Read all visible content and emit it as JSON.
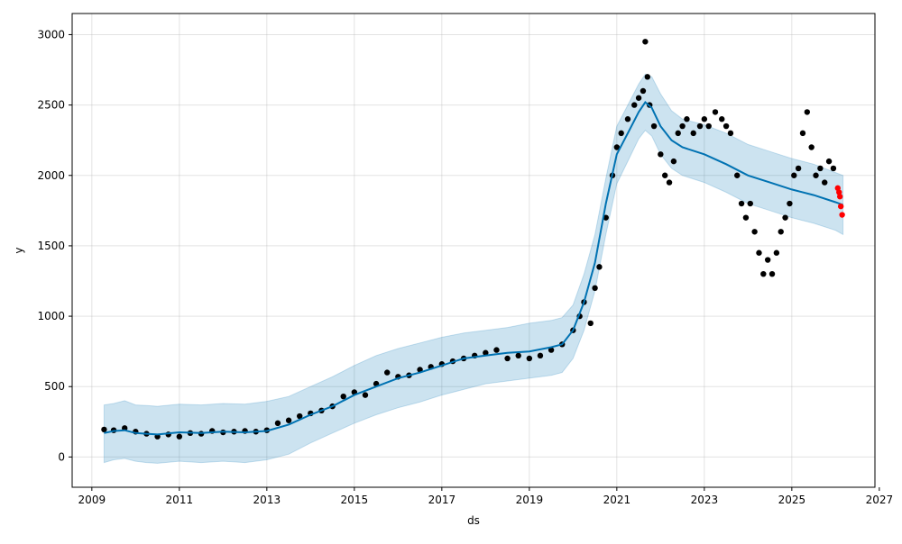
{
  "chart_data": {
    "type": "line",
    "title": "",
    "xlabel": "ds",
    "ylabel": "y",
    "xlim": [
      2008.55,
      2026.9
    ],
    "ylim": [
      -215,
      3150
    ],
    "x_ticks": [
      2009,
      2011,
      2013,
      2015,
      2017,
      2019,
      2021,
      2023,
      2025,
      2027
    ],
    "x_tick_labels": [
      "2009",
      "2011",
      "2013",
      "2015",
      "2017",
      "2019",
      "2021",
      "2023",
      "2025",
      "2027"
    ],
    "y_ticks": [
      0,
      500,
      1000,
      1500,
      2000,
      2500,
      3000
    ],
    "y_tick_labels": [
      "0",
      "500",
      "1000",
      "1500",
      "2000",
      "2500",
      "3000"
    ],
    "grid": true,
    "colors": {
      "observed": "#000000",
      "forecast_points": "#ff0000",
      "trend_line": "#0072b2",
      "interval_fill": "#0072b2"
    },
    "observed": {
      "x": [
        2009.28,
        2009.5,
        2009.75,
        2010.0,
        2010.25,
        2010.5,
        2010.75,
        2011.0,
        2011.25,
        2011.5,
        2011.75,
        2012.0,
        2012.25,
        2012.5,
        2012.75,
        2013.0,
        2013.25,
        2013.5,
        2013.75,
        2014.0,
        2014.25,
        2014.5,
        2014.75,
        2015.0,
        2015.25,
        2015.5,
        2015.75,
        2016.0,
        2016.25,
        2016.5,
        2016.75,
        2017.0,
        2017.25,
        2017.5,
        2017.75,
        2018.0,
        2018.25,
        2018.5,
        2018.75,
        2019.0,
        2019.25,
        2019.5,
        2019.75,
        2020.0,
        2020.15,
        2020.25,
        2020.4,
        2020.5,
        2020.6,
        2020.75,
        2020.9,
        2021.0,
        2021.1,
        2021.25,
        2021.4,
        2021.5,
        2021.6,
        2021.65,
        2021.7,
        2021.75,
        2021.85,
        2022.0,
        2022.1,
        2022.2,
        2022.3,
        2022.4,
        2022.5,
        2022.6,
        2022.75,
        2022.9,
        2023.0,
        2023.1,
        2023.25,
        2023.4,
        2023.5,
        2023.6,
        2023.75,
        2023.85,
        2023.95,
        2024.05,
        2024.15,
        2024.25,
        2024.35,
        2024.45,
        2024.55,
        2024.65,
        2024.75,
        2024.85,
        2024.95,
        2025.05,
        2025.15,
        2025.25,
        2025.35,
        2025.45,
        2025.55,
        2025.65,
        2025.75,
        2025.85,
        2025.95
      ],
      "y": [
        195,
        190,
        205,
        180,
        165,
        145,
        160,
        145,
        170,
        165,
        185,
        175,
        180,
        185,
        180,
        190,
        240,
        260,
        290,
        310,
        330,
        360,
        430,
        460,
        440,
        520,
        600,
        570,
        580,
        620,
        640,
        660,
        680,
        700,
        720,
        740,
        760,
        700,
        720,
        700,
        720,
        760,
        800,
        900,
        1000,
        1100,
        950,
        1200,
        1350,
        1700,
        2000,
        2200,
        2300,
        2400,
        2500,
        2550,
        2600,
        2950,
        2700,
        2500,
        2350,
        2150,
        2000,
        1950,
        2100,
        2300,
        2350,
        2400,
        2300,
        2350,
        2400,
        2350,
        2450,
        2400,
        2350,
        2300,
        2000,
        1800,
        1700,
        1800,
        1600,
        1450,
        1300,
        1400,
        1300,
        1450,
        1600,
        1700,
        1800,
        2000,
        2050,
        2300,
        2450,
        2200,
        2000,
        2050,
        1950,
        2100,
        2050
      ]
    },
    "forecast_points": {
      "x": [
        2026.05,
        2026.08,
        2026.1,
        2026.12,
        2026.15
      ],
      "y": [
        1910,
        1880,
        1850,
        1780,
        1720
      ]
    },
    "trend": {
      "x": [
        2009.28,
        2009.5,
        2009.75,
        2010.0,
        2010.25,
        2010.5,
        2011.0,
        2011.5,
        2012.0,
        2012.5,
        2013.0,
        2013.5,
        2014.0,
        2014.5,
        2015.0,
        2015.5,
        2016.0,
        2016.5,
        2017.0,
        2017.5,
        2018.0,
        2018.5,
        2019.0,
        2019.5,
        2019.75,
        2020.0,
        2020.25,
        2020.5,
        2020.75,
        2021.0,
        2021.25,
        2021.5,
        2021.65,
        2021.8,
        2022.0,
        2022.25,
        2022.5,
        2023.0,
        2023.5,
        2024.0,
        2024.5,
        2025.0,
        2025.5,
        2026.0,
        2026.17
      ],
      "y": [
        170,
        185,
        190,
        170,
        165,
        160,
        175,
        170,
        180,
        175,
        185,
        230,
        300,
        360,
        440,
        500,
        560,
        600,
        650,
        700,
        720,
        740,
        750,
        780,
        800,
        900,
        1100,
        1380,
        1800,
        2150,
        2300,
        2450,
        2520,
        2480,
        2350,
        2250,
        2200,
        2150,
        2080,
        2000,
        1950,
        1900,
        1860,
        1810,
        1790
      ]
    },
    "interval": {
      "x": [
        2009.28,
        2009.5,
        2009.75,
        2010.0,
        2010.25,
        2010.5,
        2011.0,
        2011.5,
        2012.0,
        2012.5,
        2013.0,
        2013.5,
        2014.0,
        2014.5,
        2015.0,
        2015.5,
        2016.0,
        2016.5,
        2017.0,
        2017.5,
        2018.0,
        2018.5,
        2019.0,
        2019.5,
        2019.75,
        2020.0,
        2020.25,
        2020.5,
        2020.75,
        2021.0,
        2021.25,
        2021.5,
        2021.65,
        2021.8,
        2022.0,
        2022.25,
        2022.5,
        2023.0,
        2023.5,
        2024.0,
        2024.5,
        2025.0,
        2025.5,
        2026.0,
        2026.17
      ],
      "upper": [
        370,
        380,
        400,
        370,
        365,
        360,
        375,
        370,
        380,
        375,
        395,
        430,
        500,
        570,
        650,
        720,
        770,
        810,
        850,
        880,
        900,
        920,
        950,
        970,
        990,
        1080,
        1300,
        1580,
        1980,
        2350,
        2500,
        2650,
        2720,
        2700,
        2580,
        2460,
        2400,
        2360,
        2300,
        2220,
        2170,
        2120,
        2080,
        2020,
        2000
      ],
      "lower": [
        -40,
        -20,
        -10,
        -30,
        -40,
        -45,
        -30,
        -40,
        -30,
        -40,
        -20,
        20,
        100,
        170,
        240,
        300,
        350,
        390,
        440,
        480,
        520,
        540,
        560,
        580,
        600,
        700,
        900,
        1180,
        1580,
        1940,
        2100,
        2260,
        2320,
        2280,
        2150,
        2050,
        2000,
        1950,
        1880,
        1800,
        1750,
        1700,
        1660,
        1610,
        1580
      ]
    }
  }
}
